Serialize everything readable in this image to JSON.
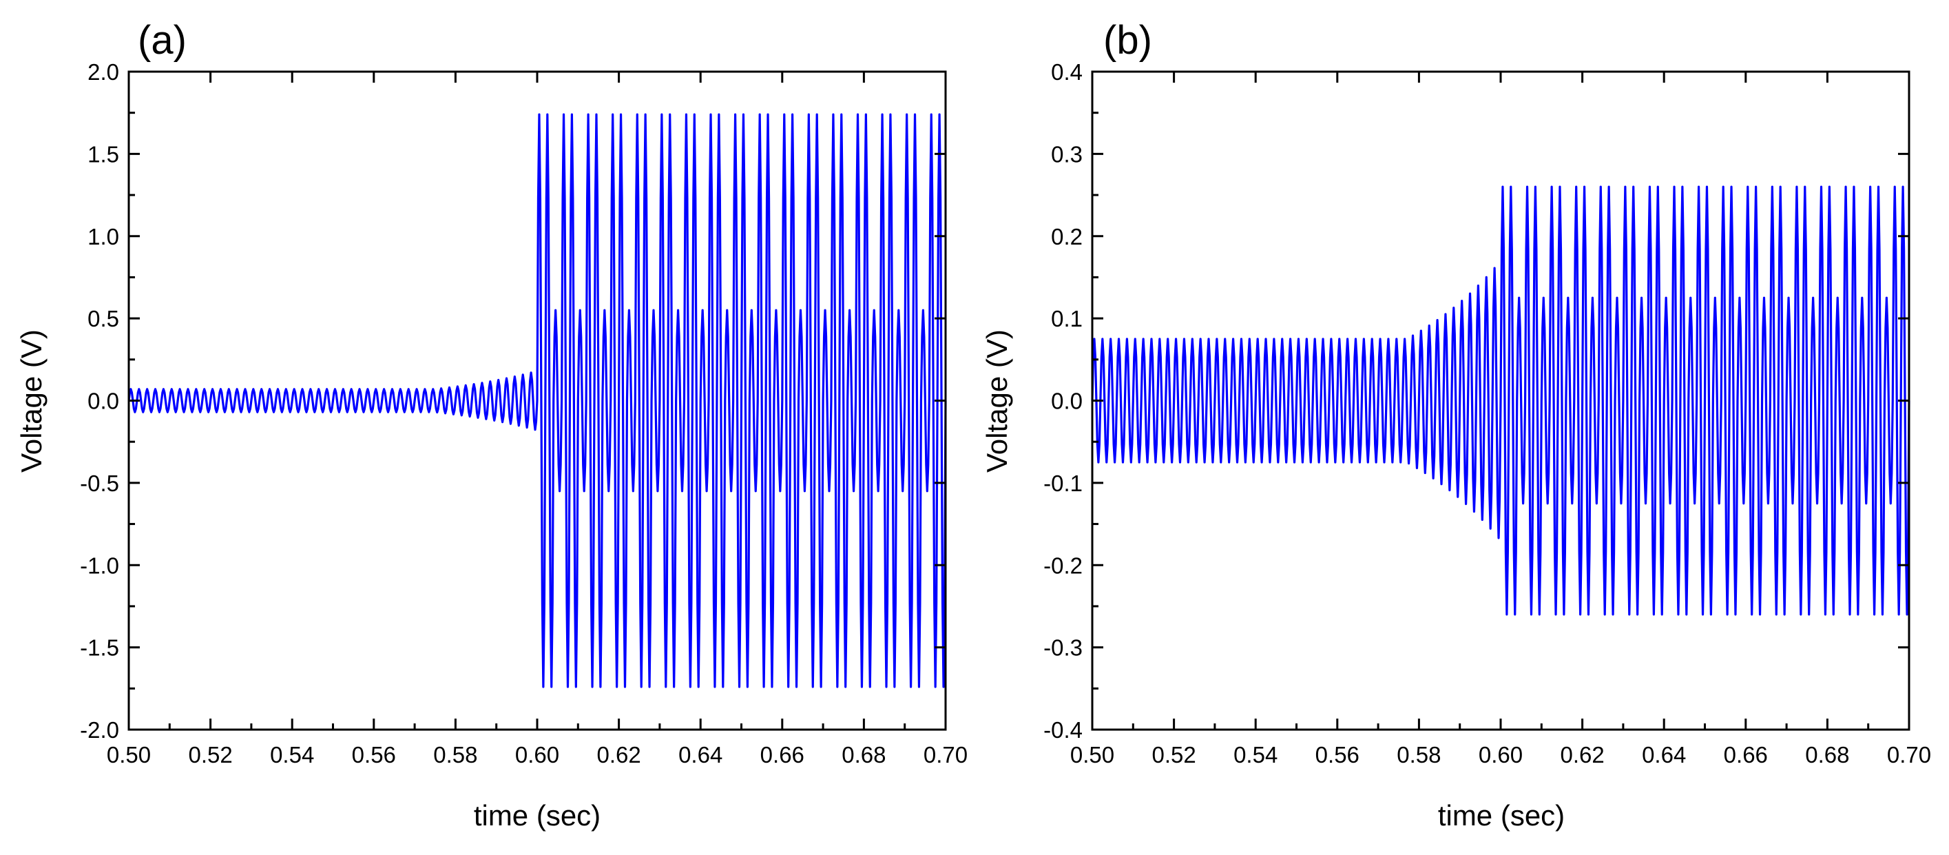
{
  "chart_data": [
    {
      "type": "line",
      "panel_label": "(a)",
      "xlabel": "time (sec)",
      "ylabel": "Voltage (V)",
      "xlim": [
        0.5,
        0.7
      ],
      "ylim": [
        -2.0,
        2.0
      ],
      "xticks": [
        "0.50",
        "0.52",
        "0.54",
        "0.56",
        "0.58",
        "0.60",
        "0.62",
        "0.64",
        "0.66",
        "0.68",
        "0.70"
      ],
      "yticks": [
        "-2.0",
        "-1.5",
        "-1.0",
        "-0.5",
        "0.0",
        "0.5",
        "1.0",
        "1.5",
        "2.0"
      ],
      "grid": false,
      "legend": "none",
      "color": "#0000ff",
      "signal": {
        "frequency_hz": 500,
        "segments": [
          {
            "t_start": 0.5,
            "t_end": 0.575,
            "amplitude": 0.07
          },
          {
            "t_start": 0.575,
            "t_end": 0.6,
            "amplitude_start": 0.07,
            "amplitude_end": 0.18
          },
          {
            "t_start": 0.6,
            "t_end": 0.7,
            "amplitude": 1.74,
            "inner_envelope": 0.55
          }
        ]
      }
    },
    {
      "type": "line",
      "panel_label": "(b)",
      "xlabel": "time (sec)",
      "ylabel": "Voltage (V)",
      "xlim": [
        0.5,
        0.7
      ],
      "ylim": [
        -0.4,
        0.4
      ],
      "xticks": [
        "0.50",
        "0.52",
        "0.54",
        "0.56",
        "0.58",
        "0.60",
        "0.62",
        "0.64",
        "0.66",
        "0.68",
        "0.70"
      ],
      "yticks": [
        "-0.4",
        "-0.3",
        "-0.2",
        "-0.1",
        "0.0",
        "0.1",
        "0.2",
        "0.3",
        "0.4"
      ],
      "grid": false,
      "legend": "none",
      "color": "#0000ff",
      "signal": {
        "frequency_hz": 500,
        "segments": [
          {
            "t_start": 0.5,
            "t_end": 0.577,
            "amplitude": 0.075
          },
          {
            "t_start": 0.577,
            "t_end": 0.6,
            "amplitude_start": 0.075,
            "amplitude_end": 0.17
          },
          {
            "t_start": 0.6,
            "t_end": 0.7,
            "amplitude": 0.26,
            "inner_envelope": 0.125
          }
        ]
      }
    }
  ]
}
